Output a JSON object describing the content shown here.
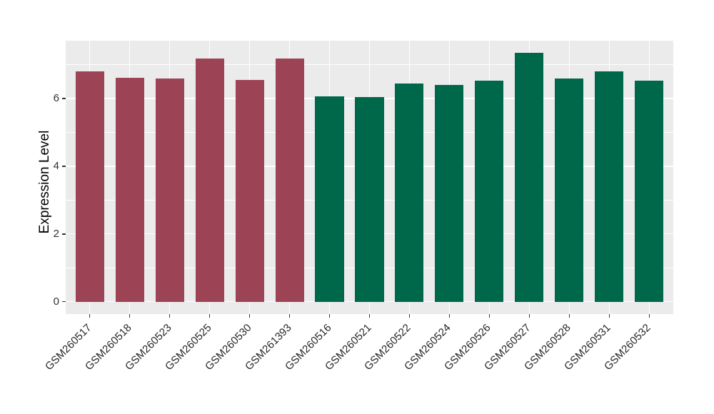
{
  "figure": {
    "background_color": "#FFFFFF",
    "panel_background_color": "#EBEBEB",
    "grid_color": "#FFFFFF",
    "tick_color": "#333333"
  },
  "chart_data": {
    "type": "bar",
    "title": "",
    "xlabel": "",
    "ylabel": "Expression Level",
    "categories": [
      "GSM260517",
      "GSM260518",
      "GSM260523",
      "GSM260525",
      "GSM260530",
      "GSM261393",
      "GSM260516",
      "GSM260521",
      "GSM260522",
      "GSM260524",
      "GSM260526",
      "GSM260527",
      "GSM260528",
      "GSM260531",
      "GSM260532"
    ],
    "values": [
      6.8,
      6.61,
      6.58,
      7.17,
      6.55,
      7.19,
      6.06,
      6.04,
      6.44,
      6.41,
      6.53,
      7.34,
      6.6,
      6.81,
      6.53
    ],
    "groups": [
      "group1",
      "group1",
      "group1",
      "group1",
      "group1",
      "group1",
      "group2",
      "group2",
      "group2",
      "group2",
      "group2",
      "group2",
      "group2",
      "group2",
      "group2"
    ],
    "group_colors": {
      "group1": "#9D4356",
      "group2": "#00684A"
    },
    "yticks": [
      0,
      2,
      4,
      6
    ],
    "ytick_labels": [
      "0",
      "2",
      "4",
      "6"
    ],
    "minor_yticks": [
      1,
      3,
      5,
      7
    ],
    "ylim": [
      -0.37,
      7.71
    ],
    "bar_width_fraction": 0.715,
    "x_label_angle_deg": 45,
    "grid": true,
    "legend_position": "none"
  }
}
